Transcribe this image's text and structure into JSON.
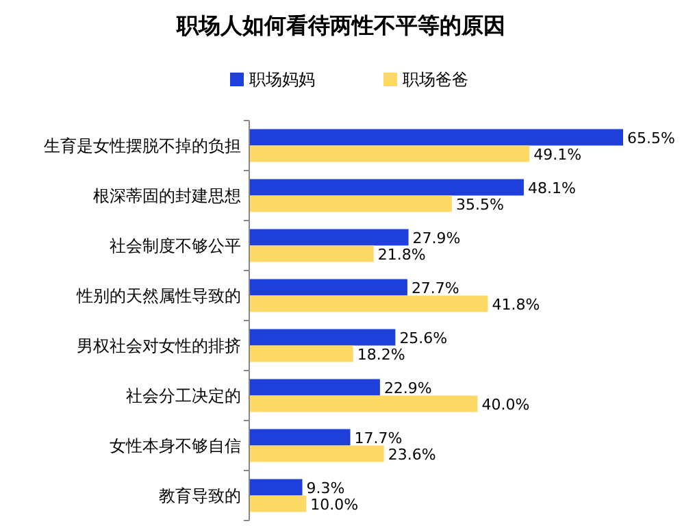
{
  "chart_data": {
    "type": "bar",
    "orientation": "horizontal",
    "title": "职场人如何看待两性不平等的原因",
    "categories": [
      "生育是女性摆脱不掉的负担",
      "根深蒂固的封建思想",
      "社会制度不够公平",
      "性别的天然属性导致的",
      "男权社会对女性的排挤",
      "社会分工决定的",
      "女性本身不够自信",
      "教育导致的"
    ],
    "series": [
      {
        "name": "职场妈妈",
        "color": "#1f3fdb",
        "values": [
          65.5,
          48.1,
          27.9,
          27.7,
          25.6,
          22.9,
          17.7,
          9.3
        ],
        "value_labels": [
          "65.5%",
          "48.1%",
          "27.9%",
          "27.7%",
          "25.6%",
          "22.9%",
          "17.7%",
          "9.3%"
        ]
      },
      {
        "name": "职场爸爸",
        "color": "#ffd966",
        "values": [
          49.1,
          35.5,
          21.8,
          41.8,
          18.2,
          40.0,
          23.6,
          10.0
        ],
        "value_labels": [
          "49.1%",
          "35.5%",
          "21.8%",
          "41.8%",
          "18.2%",
          "40.0%",
          "23.6%",
          "10.0%"
        ]
      }
    ],
    "legend": "top",
    "tick_labels": "y"
  }
}
